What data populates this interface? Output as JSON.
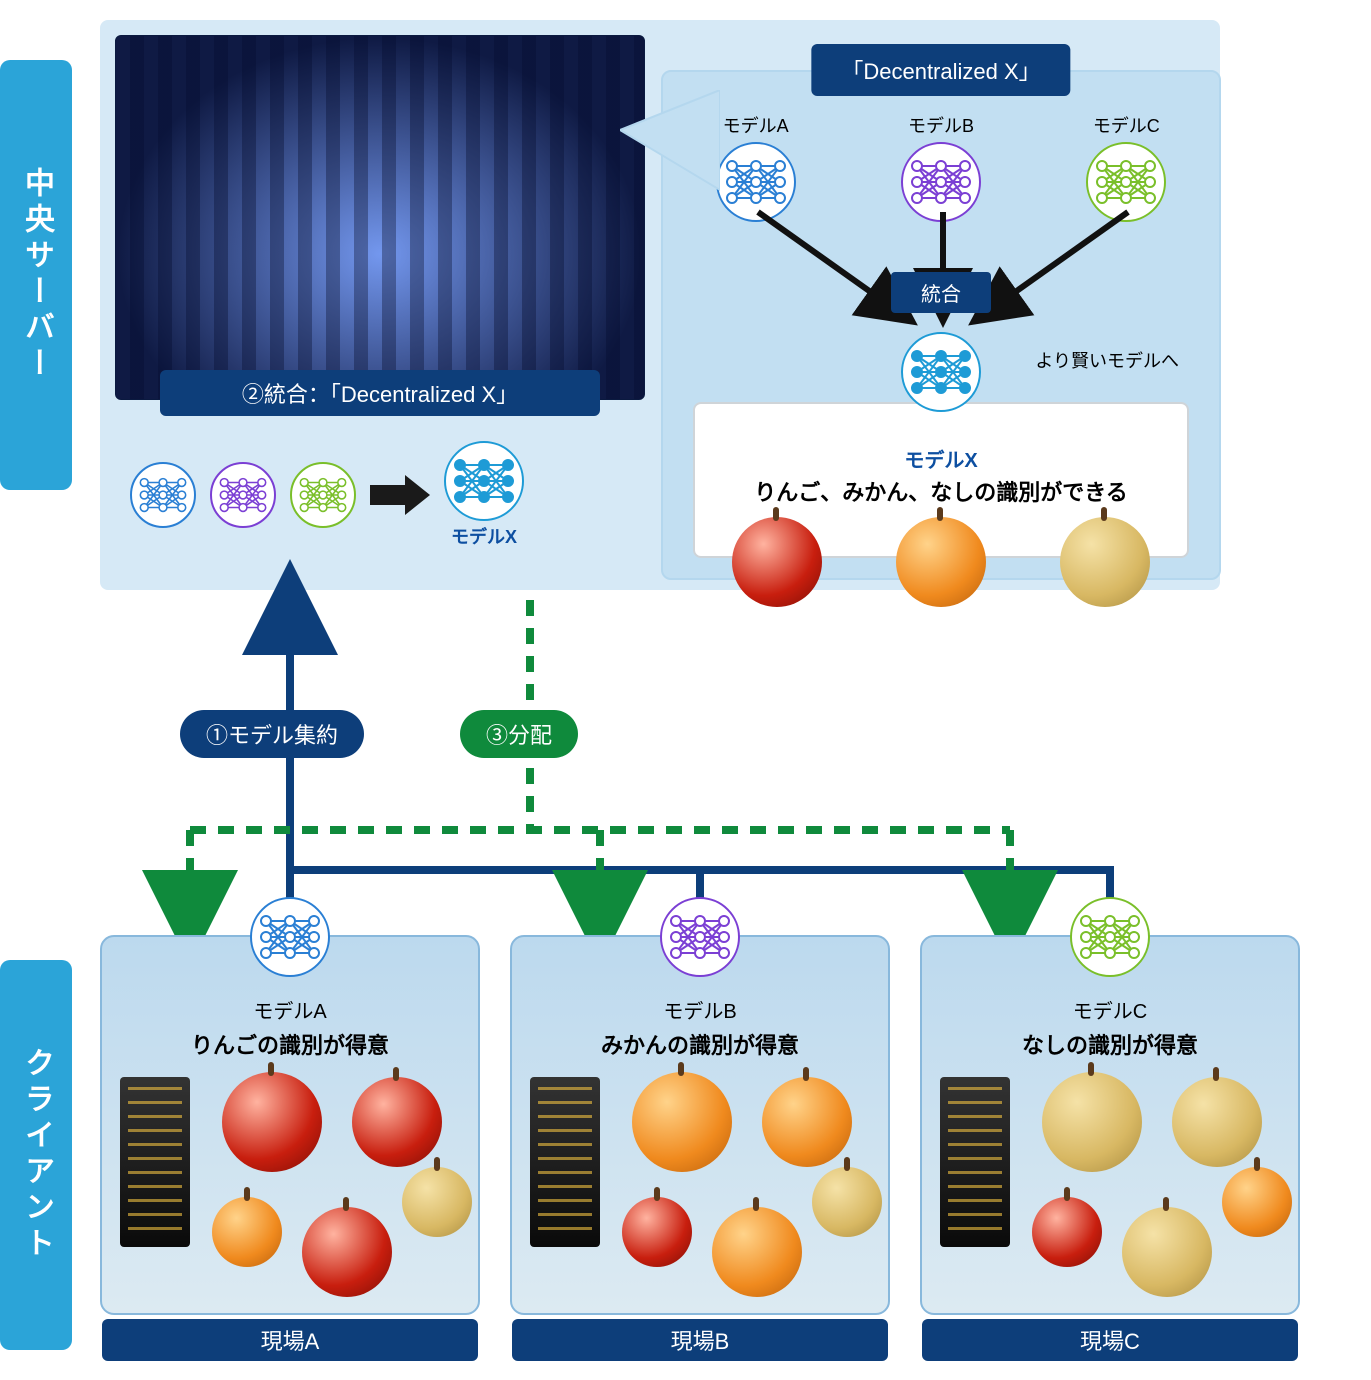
{
  "colors": {
    "blue_dark": "#0d3e7a",
    "blue_med": "#2ba4d8",
    "panel_light": "#d6e9f6",
    "panel_dx": "#c2dff2",
    "green": "#0f8a3c",
    "modelA": "#2a7fd4",
    "modelB": "#7b3fd4",
    "modelC": "#7abf2a",
    "modelX": "#1e9bd6"
  },
  "sideLabels": {
    "server": "中央サーバー",
    "client": "クライアント"
  },
  "datacenter_banner": "②統合：「Decentralized X」",
  "modelRow": {
    "modelX_label": "モデルX"
  },
  "dx": {
    "title": "「Decentralized X」",
    "models": [
      {
        "name": "モデルA",
        "color": "#2a7fd4"
      },
      {
        "name": "モデルB",
        "color": "#7b3fd4"
      },
      {
        "name": "モデルC",
        "color": "#7abf2a"
      }
    ],
    "merge_label": "統合",
    "smarter": "より賢いモデルへ",
    "result": {
      "model_name": "モデルX",
      "desc": "りんご、みかん、なしの識別ができる"
    }
  },
  "flow": {
    "aggregate": "①モデル集約",
    "distribute": "③分配"
  },
  "clients": [
    {
      "site": "現場A",
      "model": "モデルA",
      "desc": "りんごの識別が得意",
      "color": "#2a7fd4",
      "dominant": "apple"
    },
    {
      "site": "現場B",
      "model": "モデルB",
      "desc": "みかんの識別が得意",
      "color": "#7b3fd4",
      "dominant": "orange"
    },
    {
      "site": "現場C",
      "model": "モデルC",
      "desc": "なしの識別が得意",
      "color": "#7abf2a",
      "dominant": "pear"
    }
  ],
  "layout": {
    "client_x": [
      100,
      510,
      920
    ]
  }
}
